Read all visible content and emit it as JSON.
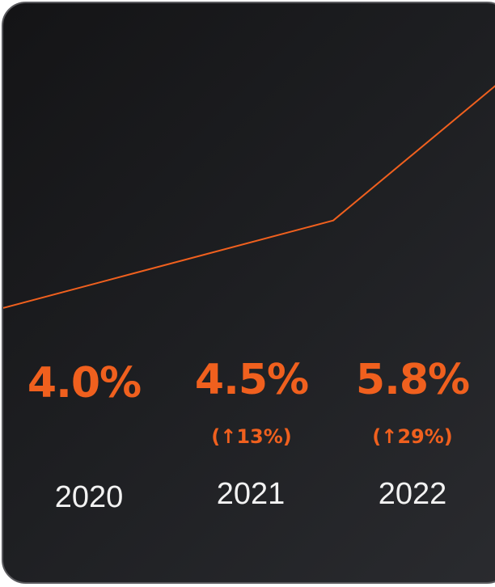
{
  "chart_data": {
    "type": "line",
    "categories": [
      "2020",
      "2021",
      "2022"
    ],
    "series": [
      {
        "values": [
          4.0,
          4.5,
          5.8
        ],
        "changes": [
          "",
          "(↑13%)",
          "(↑29%)"
        ]
      }
    ],
    "value_labels": [
      "4.0%",
      "4.5%",
      "5.8%"
    ],
    "title": "",
    "xlabel": "",
    "ylabel": "",
    "grid": false,
    "line_color": "#f0601e",
    "background": "#1d1e21"
  }
}
